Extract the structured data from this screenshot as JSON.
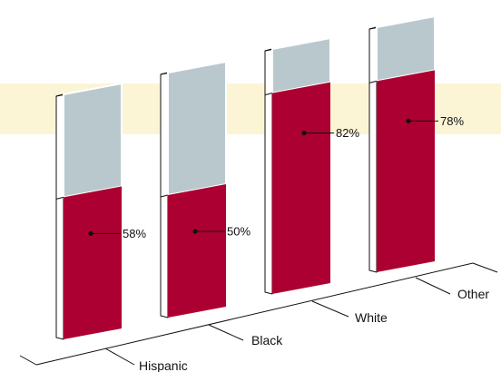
{
  "chart_data": {
    "type": "bar",
    "stacked": true,
    "style": "3d-perspective",
    "categories": [
      "Hispanic",
      "Black",
      "White",
      "Other"
    ],
    "series": [
      {
        "values": [
          58,
          50,
          82,
          78
        ],
        "color": "#ad0032"
      },
      {
        "values": [
          42,
          50,
          18,
          22
        ],
        "color": "#b9c8cd"
      }
    ],
    "labels": [
      "58%",
      "50%",
      "82%",
      "78%"
    ],
    "ylim": [
      0,
      100
    ],
    "band_color": "#fbf5d6"
  }
}
